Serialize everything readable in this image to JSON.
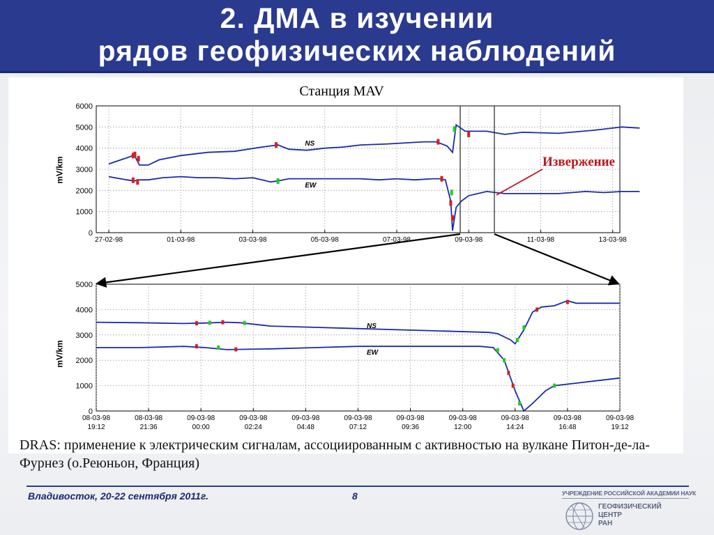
{
  "header": {
    "line1": "2. ДМА в изучении",
    "line2": "рядов геофизических наблюдений"
  },
  "station_label": "Станция MAV",
  "annotation": {
    "eruption_label": "Извержение",
    "eruption_color": "#c0151b"
  },
  "caption": "DRAS: применение к электрическим сигналам, ассоциированным с активностью на вулкане Питон-де-ла-Фурнез (о.Реюньон, Франция)",
  "footer": {
    "location_date": "Владивосток, 20-22 сентября 2011г.",
    "page_number": "8"
  },
  "logo": {
    "institution": "УЧРЕЖДЕНИЕ РОССИЙСКОЙ АКАДЕМИИ НАУК",
    "name_lines": [
      "ГЕОФИЗИЧЕСКИЙ",
      "ЦЕНТР",
      "РАН"
    ],
    "icon": "globe-icon"
  },
  "colors": {
    "header_bg": "#2a3a8f",
    "series_line": "#1a2aa8",
    "anomaly_red": "#d42020",
    "anomaly_green": "#22cc22"
  },
  "chart_data": [
    {
      "type": "line",
      "title": "",
      "ylabel": "mV/km",
      "ylim": [
        0,
        6000
      ],
      "yticks": [
        0,
        1000,
        2000,
        3000,
        4000,
        5000,
        6000
      ],
      "x_tick_labels": [
        "27-02-98",
        "01-03-98",
        "03-03-98",
        "05-03-98",
        "07-03-98",
        "09-03-98",
        "11-03-98",
        "13-03-98"
      ],
      "x_range_days": [
        -0.35,
        14.2
      ],
      "grid": true,
      "series": [
        {
          "name": "NS",
          "points": [
            [
              0,
              3250
            ],
            [
              0.5,
              3400
            ],
            [
              1.2,
              3600
            ],
            [
              1.4,
              3700
            ],
            [
              1.7,
              3200
            ],
            [
              2.2,
              3200
            ],
            [
              2.8,
              3450
            ],
            [
              4,
              3650
            ],
            [
              5.5,
              3800
            ],
            [
              7,
              3850
            ],
            [
              8.5,
              4050
            ],
            [
              9.4,
              4150
            ],
            [
              10,
              3950
            ],
            [
              11,
              3900
            ],
            [
              12,
              4000
            ],
            [
              13,
              4050
            ],
            [
              14,
              4150
            ],
            [
              15.5,
              4200
            ],
            [
              16.5,
              4250
            ],
            [
              17.5,
              4300
            ],
            [
              18.2,
              4300
            ],
            [
              18.8,
              4100
            ],
            [
              19.1,
              3800
            ],
            [
              19.3,
              5100
            ],
            [
              19.8,
              4800
            ],
            [
              21,
              4800
            ],
            [
              22,
              4650
            ],
            [
              23,
              4750
            ],
            [
              25,
              4700
            ],
            [
              27,
              4850
            ],
            [
              28.5,
              5000
            ],
            [
              29.5,
              4950
            ]
          ]
        },
        {
          "name": "EW",
          "points": [
            [
              0,
              2650
            ],
            [
              1,
              2500
            ],
            [
              1.4,
              2450
            ],
            [
              1.7,
              2500
            ],
            [
              2.2,
              2500
            ],
            [
              3,
              2600
            ],
            [
              4,
              2650
            ],
            [
              5,
              2600
            ],
            [
              6,
              2600
            ],
            [
              7,
              2550
            ],
            [
              8,
              2600
            ],
            [
              9,
              2400
            ],
            [
              9.4,
              2450
            ],
            [
              10,
              2550
            ],
            [
              11,
              2550
            ],
            [
              12,
              2550
            ],
            [
              13,
              2550
            ],
            [
              14,
              2550
            ],
            [
              15,
              2500
            ],
            [
              16,
              2550
            ],
            [
              17,
              2500
            ],
            [
              18,
              2550
            ],
            [
              18.4,
              2550
            ],
            [
              18.7,
              2500
            ],
            [
              19.0,
              1500
            ],
            [
              19.1,
              100
            ],
            [
              19.3,
              1200
            ],
            [
              19.6,
              1500
            ],
            [
              20,
              1750
            ],
            [
              21,
              1950
            ],
            [
              22,
              1850
            ],
            [
              23,
              1850
            ],
            [
              25,
              1850
            ],
            [
              26.5,
              1950
            ],
            [
              27.5,
              1900
            ],
            [
              28.5,
              1950
            ],
            [
              29.5,
              1950
            ]
          ]
        }
      ],
      "zoom_window_days": [
        9.3,
        9.7
      ]
    },
    {
      "type": "line",
      "title": "",
      "ylabel": "mV/km",
      "ylim": [
        0,
        5000
      ],
      "yticks": [
        0,
        1000,
        2000,
        3000,
        4000,
        5000
      ],
      "x_tick_labels": [
        [
          "08-03-98",
          "19:12"
        ],
        [
          "08-03-98",
          "21:36"
        ],
        [
          "09-03-98",
          "00:00"
        ],
        [
          "09-03-98",
          "02:24"
        ],
        [
          "09-03-98",
          "04:48"
        ],
        [
          "09-03-98",
          "07:12"
        ],
        [
          "09-03-98",
          "09:36"
        ],
        [
          "09-03-98",
          "12:00"
        ],
        [
          "09-03-98",
          "14:24"
        ],
        [
          "09-03-98",
          "16:48"
        ],
        [
          "09-03-98",
          "19:12"
        ]
      ],
      "grid": true,
      "series": [
        {
          "name": "NS",
          "points": [
            [
              0,
              3500
            ],
            [
              1,
              3480
            ],
            [
              2,
              3450
            ],
            [
              2.5,
              3470
            ],
            [
              3,
              3500
            ],
            [
              3.3,
              3480
            ],
            [
              4,
              3350
            ],
            [
              5,
              3300
            ],
            [
              6,
              3250
            ],
            [
              7,
              3200
            ],
            [
              8,
              3150
            ],
            [
              9,
              3100
            ],
            [
              9.2,
              3050
            ],
            [
              9.5,
              2800
            ],
            [
              9.6,
              2650
            ],
            [
              9.8,
              3200
            ],
            [
              10,
              3900
            ],
            [
              10.2,
              4100
            ],
            [
              10.5,
              4150
            ],
            [
              10.8,
              4350
            ],
            [
              11,
              4250
            ],
            [
              11.5,
              4250
            ],
            [
              12,
              4250
            ]
          ]
        },
        {
          "name": "EW",
          "points": [
            [
              0,
              2500
            ],
            [
              1,
              2500
            ],
            [
              2,
              2550
            ],
            [
              2.5,
              2500
            ],
            [
              3,
              2420
            ],
            [
              4,
              2450
            ],
            [
              5,
              2500
            ],
            [
              6,
              2550
            ],
            [
              7,
              2550
            ],
            [
              8,
              2550
            ],
            [
              8.8,
              2550
            ],
            [
              9.1,
              2500
            ],
            [
              9.35,
              2000
            ],
            [
              9.6,
              800
            ],
            [
              9.8,
              0
            ],
            [
              10,
              300
            ],
            [
              10.3,
              800
            ],
            [
              10.5,
              1000
            ],
            [
              11,
              1100
            ],
            [
              11.5,
              1200
            ],
            [
              12,
              1300
            ]
          ]
        }
      ],
      "x_range": [
        0,
        12
      ]
    }
  ]
}
